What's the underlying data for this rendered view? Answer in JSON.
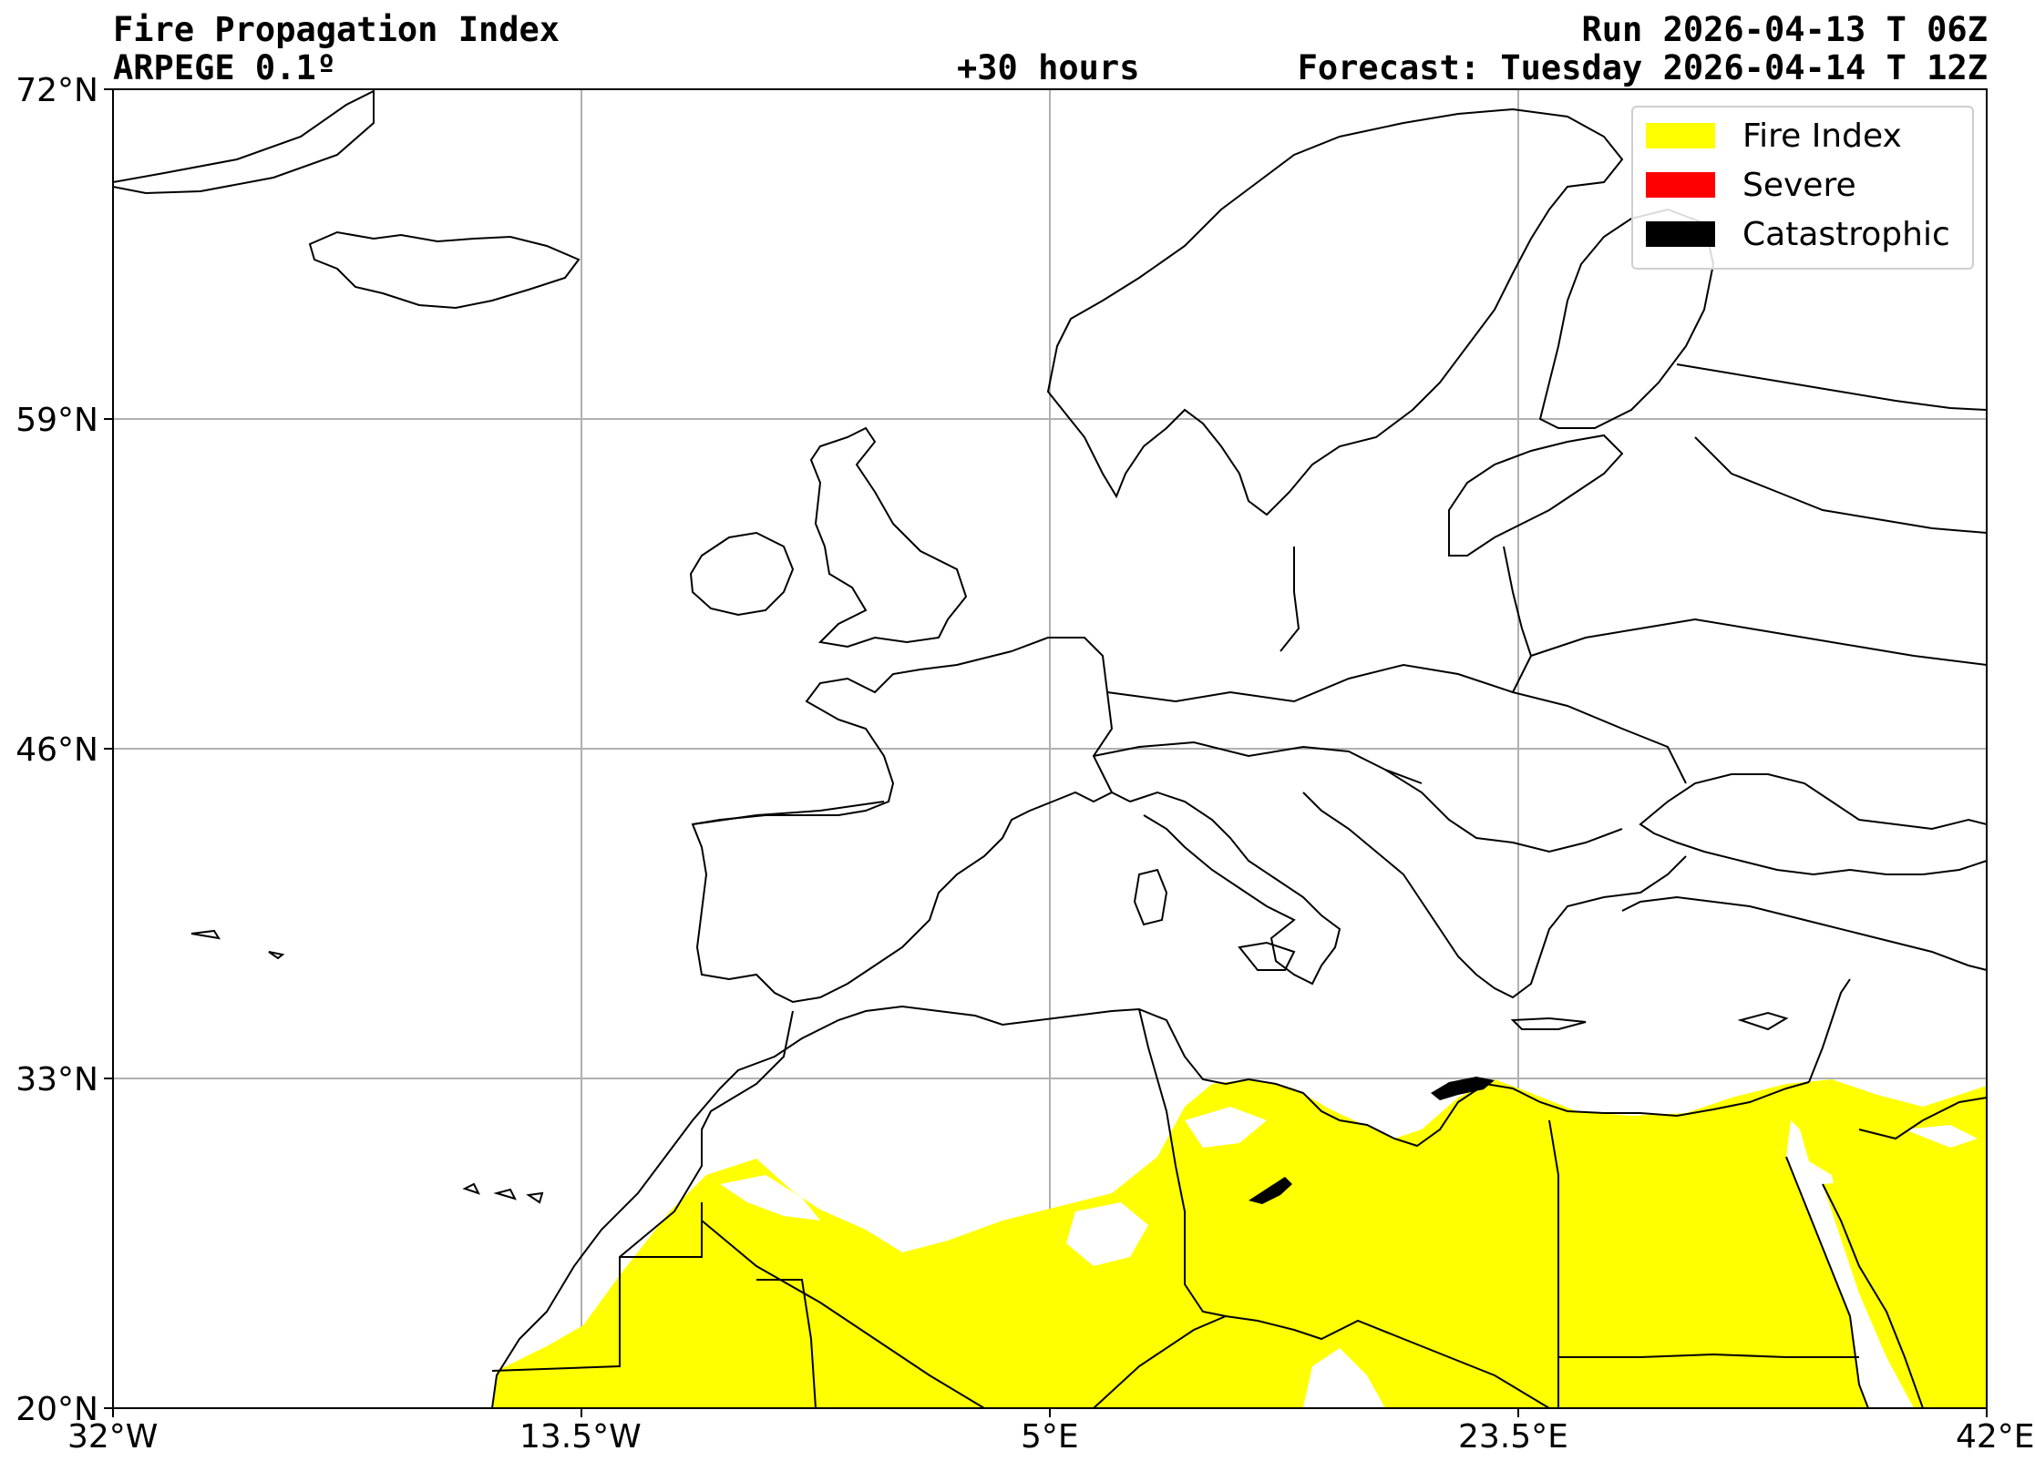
{
  "header": {
    "title": "Fire Propagation Index",
    "model": "ARPEGE 0.1º",
    "lead": "+30 hours",
    "run": "Run 2026-04-13 T 06Z",
    "forecast": "Forecast: Tuesday 2026-04-14 T 12Z"
  },
  "axes": {
    "lon_ticks": [
      "32°W",
      "13.5°W",
      "5°E",
      "23.5°E",
      "42°E"
    ],
    "lat_ticks": [
      "72°N",
      "59°N",
      "46°N",
      "33°N",
      "20°N"
    ],
    "lon_range": [
      -32,
      42
    ],
    "lat_range": [
      20,
      72
    ],
    "grid": true
  },
  "legend": {
    "placement": "top-right",
    "items": [
      {
        "label": "Fire Index",
        "color": "#ffff00"
      },
      {
        "label": "Severe",
        "color": "#ff0000"
      },
      {
        "label": "Catastrophic",
        "color": "#000000"
      }
    ]
  },
  "colors": {
    "fire_index": "#ffff00",
    "severe": "#ff0000",
    "catastrophic": "#000000",
    "grid": "#b0b0b0",
    "coastline": "#000000"
  }
}
